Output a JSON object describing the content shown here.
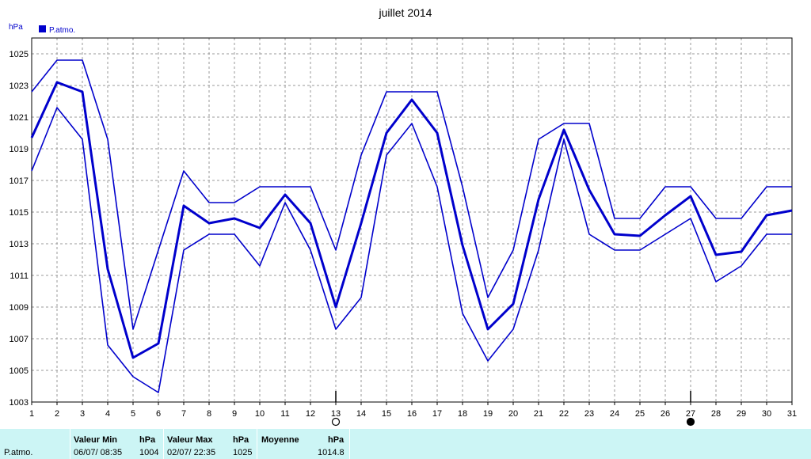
{
  "chart_data": {
    "type": "line",
    "title": "juillet 2014",
    "ylabel": "hPa",
    "ylim": [
      1003,
      1026
    ],
    "yticks": [
      1003,
      1005,
      1007,
      1009,
      1011,
      1013,
      1015,
      1017,
      1019,
      1021,
      1023,
      1025
    ],
    "xlim": [
      1,
      31
    ],
    "x": [
      1,
      2,
      3,
      4,
      5,
      6,
      7,
      8,
      9,
      10,
      11,
      12,
      13,
      14,
      15,
      16,
      17,
      18,
      19,
      20,
      21,
      22,
      23,
      24,
      25,
      26,
      27,
      28,
      29,
      30,
      31
    ],
    "grid": true,
    "legend": "top-left",
    "series": [
      {
        "name": "P.atmo.",
        "role": "mean",
        "color": "#0000cc",
        "values": [
          1019.7,
          1023.2,
          1022.6,
          1011.4,
          1005.8,
          1006.7,
          1015.4,
          1014.3,
          1014.6,
          1014.0,
          1016.1,
          1014.3,
          1009.0,
          1014.3,
          1020.0,
          1022.1,
          1020.0,
          1012.9,
          1007.6,
          1009.2,
          1015.8,
          1020.2,
          1016.4,
          1013.6,
          1013.5,
          1014.8,
          1016.0,
          1012.3,
          1012.5,
          1014.8,
          1015.1
        ]
      },
      {
        "name": "",
        "role": "max",
        "color": "#0000cc",
        "values": [
          1022.6,
          1024.6,
          1024.6,
          1019.6,
          1007.6,
          1012.6,
          1017.6,
          1015.6,
          1015.6,
          1016.6,
          1016.6,
          1016.6,
          1012.6,
          1018.6,
          1022.6,
          1022.6,
          1022.6,
          1016.6,
          1009.6,
          1012.6,
          1019.6,
          1020.6,
          1020.6,
          1014.6,
          1014.6,
          1016.6,
          1016.6,
          1014.6,
          1014.6,
          1016.6,
          1016.6
        ]
      },
      {
        "name": "",
        "role": "min",
        "color": "#0000cc",
        "values": [
          1017.6,
          1021.6,
          1019.6,
          1006.6,
          1004.6,
          1003.6,
          1012.6,
          1013.6,
          1013.6,
          1011.6,
          1015.6,
          1012.6,
          1007.6,
          1009.6,
          1018.6,
          1020.6,
          1016.6,
          1008.6,
          1005.6,
          1007.6,
          1012.6,
          1019.6,
          1013.6,
          1012.6,
          1012.6,
          1013.6,
          1014.6,
          1010.6,
          1011.6,
          1013.6,
          1013.6
        ]
      }
    ],
    "moon_markers": [
      {
        "day": 13,
        "phase": "full"
      },
      {
        "day": 27,
        "phase": "new"
      }
    ]
  },
  "stats": {
    "row_label": "P.atmo.",
    "min_header": "Valeur Min",
    "min_unit": "hPa",
    "min_date": "06/07/  08:35",
    "min_value": "1004",
    "max_header": "Valeur Max",
    "max_unit": "hPa",
    "max_date": "02/07/  22:35",
    "max_value": "1025",
    "avg_header": "Moyenne",
    "avg_unit": "hPa",
    "avg_value": "1014.8"
  }
}
